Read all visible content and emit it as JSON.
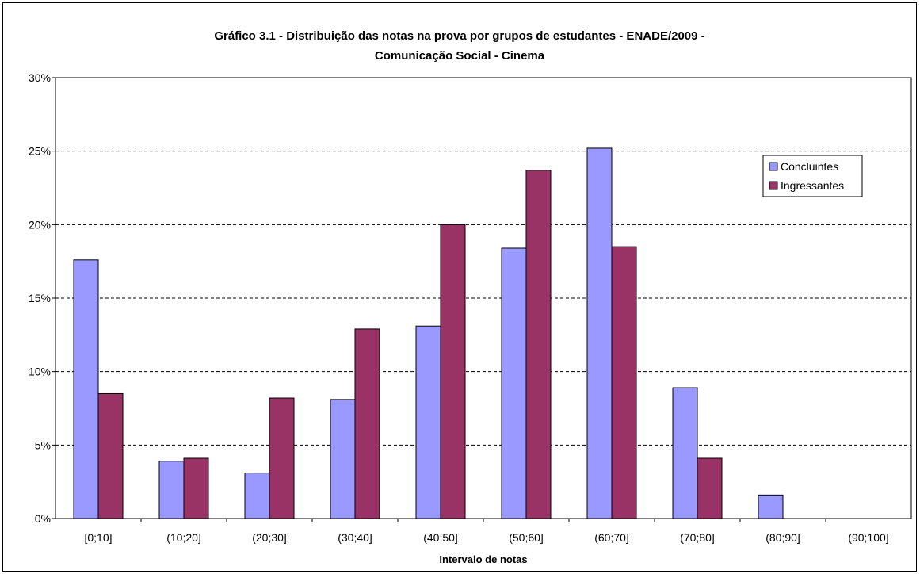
{
  "chart_data": {
    "type": "bar",
    "title_lines": [
      "Gráfico 3.1 - Distribuição das notas na prova por grupos de estudantes - ENADE/2009 -",
      "Comunicação Social - Cinema"
    ],
    "xlabel": "Intervalo de notas",
    "ylabel": "",
    "categories": [
      "[0;10]",
      "(10;20]",
      "(20;30]",
      "(30;40]",
      "(40;50]",
      "(50;60]",
      "(60;70]",
      "(70;80]",
      "(80;90]",
      "(90;100]"
    ],
    "series": [
      {
        "name": "Concluintes",
        "color": "#9999ff",
        "values": [
          17.6,
          3.9,
          3.1,
          8.1,
          13.1,
          18.4,
          25.2,
          8.9,
          1.6,
          0
        ]
      },
      {
        "name": "Ingressantes",
        "color": "#993366",
        "values": [
          8.5,
          4.1,
          8.2,
          12.9,
          20.0,
          23.7,
          18.5,
          4.1,
          0,
          0
        ]
      }
    ],
    "ylim": [
      0,
      30
    ],
    "yticks": [
      0,
      5,
      10,
      15,
      20,
      25,
      30
    ],
    "ytick_labels": [
      "0%",
      "5%",
      "10%",
      "15%",
      "20%",
      "25%",
      "30%"
    ],
    "grid": "horizontal dashed",
    "legend_position": "top-right"
  }
}
